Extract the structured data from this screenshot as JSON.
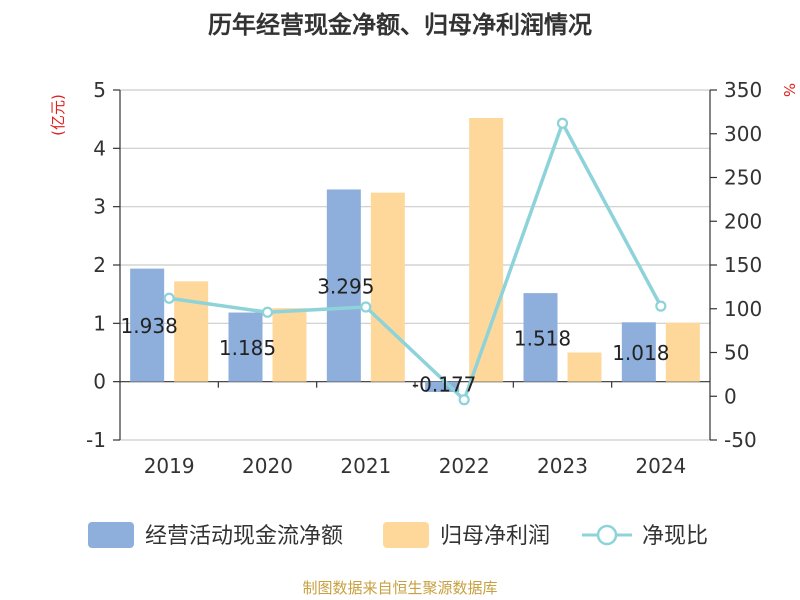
{
  "title": "历年经营现金净额、归母净利润情况",
  "source": "制图数据来自恒生聚源数据库",
  "colors": {
    "cash_flow_bar": "#8eaedb",
    "net_profit_bar": "#fdd89a",
    "ratio_line": "#8dd3d9",
    "unit_text": "#e02020",
    "source_text": "#c8a040"
  },
  "chart_data": {
    "type": "bar",
    "title": "历年经营现金净额、归母净利润情况",
    "categories": [
      "2019",
      "2020",
      "2021",
      "2022",
      "2023",
      "2024"
    ],
    "series": [
      {
        "name": "经营活动现金流净额",
        "type": "bar",
        "axis": "left",
        "values": [
          1.938,
          1.185,
          3.295,
          -0.177,
          1.518,
          1.018
        ],
        "labels": [
          "1.938",
          "1.185",
          "3.295",
          "-0.177",
          "1.518",
          "1.018"
        ]
      },
      {
        "name": "归母净利润",
        "type": "bar",
        "axis": "left",
        "values": [
          1.72,
          1.26,
          3.24,
          4.52,
          0.5,
          1.01
        ]
      },
      {
        "name": "净现比",
        "type": "line",
        "axis": "right",
        "values": [
          112,
          96,
          102,
          -4,
          312,
          103
        ]
      }
    ],
    "left_axis": {
      "unit": "(亿元)",
      "ylim": [
        -1,
        5
      ],
      "ticks": [
        "-1",
        "0",
        "1",
        "2",
        "3",
        "4",
        "5"
      ]
    },
    "right_axis": {
      "unit": "%",
      "ylim": [
        -50,
        350
      ],
      "ticks": [
        "-50",
        "0",
        "50",
        "100",
        "150",
        "200",
        "250",
        "300",
        "350"
      ]
    },
    "grid": true,
    "legend": "bottom"
  }
}
